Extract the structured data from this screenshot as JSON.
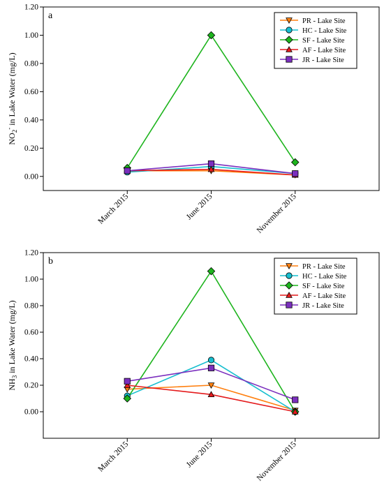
{
  "chart_data": [
    {
      "id": "a",
      "type": "line",
      "panel_label": "a",
      "ylabel_main": "NO",
      "ylabel_sub": "2",
      "ylabel_sup": "-",
      "ylabel_rest": " in Lake Water (mg/L)",
      "categories": [
        "March 2015",
        "June 2015",
        "November 2015"
      ],
      "yticks": [
        "0.00",
        "0.20",
        "0.40",
        "0.60",
        "0.80",
        "1.00",
        "1.20"
      ],
      "ylim": [
        -0.1,
        1.2
      ],
      "legend_position": "top-right",
      "series": [
        {
          "name": "PR - Lake Site",
          "color": "#FF7F0E",
          "marker": "triangle-down",
          "values": [
            0.04,
            0.04,
            0.01
          ]
        },
        {
          "name": "HC - Lake Site",
          "color": "#17BECF",
          "marker": "circle",
          "values": [
            0.03,
            0.07,
            0.02
          ]
        },
        {
          "name": "SF - Lake Site",
          "color": "#1DB41D",
          "marker": "diamond",
          "values": [
            0.06,
            1.0,
            0.1
          ]
        },
        {
          "name": "AF - Lake Site",
          "color": "#E41A1C",
          "marker": "triangle-up",
          "values": [
            0.04,
            0.05,
            0.01
          ]
        },
        {
          "name": "JR - Lake Site",
          "color": "#7B2FBE",
          "marker": "square",
          "values": [
            0.04,
            0.09,
            0.02
          ]
        }
      ]
    },
    {
      "id": "b",
      "type": "line",
      "panel_label": "b",
      "ylabel_main": "NH",
      "ylabel_sub": "3",
      "ylabel_sup": "",
      "ylabel_rest": " in Lake Water (mg/L)",
      "categories": [
        "March 2015",
        "June 2015",
        "November 2015"
      ],
      "yticks": [
        "0.00",
        "0.20",
        "0.40",
        "0.60",
        "0.80",
        "1.00",
        "1.20"
      ],
      "ylim": [
        -0.2,
        1.2
      ],
      "legend_position": "top-right",
      "series": [
        {
          "name": "PR - Lake Site",
          "color": "#FF7F0E",
          "marker": "triangle-down",
          "values": [
            0.17,
            0.2,
            0.01
          ]
        },
        {
          "name": "HC - Lake Site",
          "color": "#17BECF",
          "marker": "circle",
          "values": [
            0.12,
            0.39,
            0.0
          ]
        },
        {
          "name": "SF - Lake Site",
          "color": "#1DB41D",
          "marker": "diamond",
          "values": [
            0.1,
            1.06,
            0.0
          ]
        },
        {
          "name": "AF - Lake Site",
          "color": "#E41A1C",
          "marker": "triangle-up",
          "values": [
            0.2,
            0.13,
            0.0
          ]
        },
        {
          "name": "JR - Lake Site",
          "color": "#7B2FBE",
          "marker": "square",
          "values": [
            0.23,
            0.33,
            0.09
          ]
        }
      ]
    }
  ]
}
